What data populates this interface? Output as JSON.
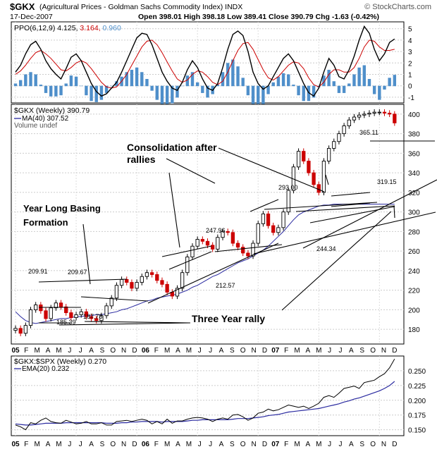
{
  "header": {
    "symbol": "$GKX",
    "name": "(Agricultural Prices - Goldman Sachs Commodity Index)",
    "exchange": "INDX",
    "date": "17-Dec-2007",
    "ohlc": "Open 398.01  High 398.18  Low 389.41  Close 390.79  Chg -1.63 (-0.42%)",
    "watermark": "© StockCharts.com"
  },
  "chart_data": [
    {
      "type": "line",
      "panel": "ppo",
      "legend": [
        "PPO(6,12,9)",
        "4.125,",
        "3.164,",
        "0.960"
      ],
      "ylim": [
        -1.5,
        5.6
      ],
      "yticks": [
        -1,
        0,
        1,
        2,
        3,
        4,
        5
      ],
      "x": [
        0,
        2,
        4,
        6,
        8,
        10,
        12,
        14,
        16,
        18,
        20,
        22,
        24,
        26,
        28,
        30,
        32,
        34,
        36,
        38,
        40,
        42,
        44,
        46,
        48,
        50,
        52,
        54,
        56,
        58,
        60,
        62,
        64,
        66,
        68,
        70,
        72,
        74,
        76,
        78,
        80,
        82,
        84,
        86,
        88,
        90,
        92,
        94,
        96,
        98,
        100,
        102,
        104,
        106,
        108,
        110,
        112,
        114,
        116,
        118,
        120,
        122,
        124,
        126,
        128,
        130,
        132,
        134,
        136,
        138,
        140,
        142,
        144,
        146,
        148,
        150
      ],
      "series": [
        {
          "name": "PPO",
          "color": "#000000",
          "values": [
            1.2,
            1.8,
            2.8,
            3.6,
            3.9,
            3.2,
            2.2,
            1.5,
            1.0,
            0.6,
            1.5,
            2.5,
            2.8,
            2.2,
            1.2,
            0.2,
            -0.5,
            -0.9,
            -0.7,
            -0.2,
            0.3,
            1.2,
            2.2,
            3.2,
            4.2,
            4.6,
            4.5,
            3.6,
            2.4,
            1.2,
            0.4,
            -0.2,
            -0.4,
            0.3,
            1.4,
            2.2,
            1.6,
            0.6,
            -0.2,
            -0.4,
            0.2,
            1.6,
            3.2,
            4.5,
            4.8,
            4.4,
            3.0,
            1.2,
            0.2,
            -0.3,
            0.0,
            0.8,
            1.6,
            2.4,
            2.8,
            2.2,
            1.2,
            0.2,
            -0.6,
            -0.9,
            -0.2,
            1.2,
            2.4,
            1.8,
            0.8,
            0.6,
            1.4,
            2.6,
            4.0,
            5.2,
            4.6,
            3.2,
            2.2,
            2.8,
            3.8,
            4.1
          ]
        },
        {
          "name": "Signal",
          "color": "#cc0000",
          "values": [
            1.0,
            1.3,
            1.8,
            2.4,
            2.9,
            3.1,
            2.8,
            2.4,
            1.9,
            1.4,
            1.3,
            1.6,
            2.0,
            2.2,
            2.0,
            1.5,
            0.9,
            0.3,
            -0.1,
            -0.2,
            -0.1,
            0.4,
            1.0,
            1.8,
            2.6,
            3.4,
            3.9,
            4.0,
            3.6,
            2.9,
            2.1,
            1.3,
            0.6,
            0.3,
            0.5,
            1.0,
            1.3,
            1.2,
            0.8,
            0.3,
            0.1,
            0.4,
            1.2,
            2.2,
            3.1,
            3.7,
            3.8,
            3.2,
            2.3,
            1.4,
            0.7,
            0.5,
            0.8,
            1.3,
            1.8,
            2.1,
            2.0,
            1.5,
            0.7,
            0.1,
            -0.1,
            0.3,
            1.0,
            1.4,
            1.4,
            1.2,
            1.2,
            1.6,
            2.4,
            3.4,
            4.0,
            3.9,
            3.4,
            3.1,
            3.1,
            3.2
          ]
        },
        {
          "name": "Histogram",
          "color": "#4f8fca",
          "values": [
            0.2,
            0.5,
            1.0,
            1.2,
            1.0,
            0.1,
            -0.6,
            -0.9,
            -0.9,
            -0.8,
            0.2,
            0.9,
            0.8,
            0.0,
            -0.8,
            -1.3,
            -1.4,
            -1.2,
            -0.6,
            0.0,
            0.4,
            0.8,
            1.2,
            1.4,
            1.6,
            1.2,
            0.6,
            -0.4,
            -1.2,
            -1.7,
            -1.7,
            -1.5,
            -1.0,
            0.0,
            0.9,
            1.2,
            0.3,
            -0.6,
            -1.0,
            -0.7,
            0.1,
            1.2,
            2.0,
            2.3,
            1.7,
            0.7,
            -0.8,
            -2.0,
            -2.1,
            -1.7,
            -0.7,
            0.3,
            0.8,
            1.1,
            1.0,
            0.1,
            -0.8,
            -1.3,
            -1.3,
            -1.0,
            -0.1,
            0.9,
            1.4,
            0.4,
            -0.6,
            -0.6,
            0.2,
            1.0,
            1.6,
            1.8,
            0.6,
            -0.7,
            -1.2,
            -0.3,
            0.7,
            0.96
          ]
        }
      ]
    },
    {
      "type": "candlestick",
      "panel": "price",
      "legend": [
        "$GKX (Weekly) 390.79",
        "MA(40) 307.52",
        "Volume undef"
      ],
      "ylim": [
        165,
        410
      ],
      "yticks": [
        180,
        200,
        220,
        240,
        260,
        280,
        300,
        320,
        340,
        360,
        380,
        400
      ],
      "x": [
        0,
        2,
        4,
        6,
        8,
        10,
        12,
        14,
        16,
        18,
        20,
        22,
        24,
        26,
        28,
        30,
        32,
        34,
        36,
        38,
        40,
        42,
        44,
        46,
        48,
        50,
        52,
        54,
        56,
        58,
        60,
        62,
        64,
        66,
        68,
        70,
        72,
        74,
        76,
        78,
        80,
        82,
        84,
        86,
        88,
        90,
        92,
        94,
        96,
        98,
        100,
        102,
        104,
        106,
        108,
        110,
        112,
        114,
        116,
        118,
        120,
        122,
        124,
        126,
        128,
        130,
        132,
        134,
        136,
        138,
        140,
        142,
        144,
        146,
        148,
        150
      ],
      "close": [
        181,
        176,
        184,
        200,
        205,
        199,
        191,
        202,
        207,
        203,
        197,
        192,
        195,
        198,
        193,
        191,
        189,
        194,
        204,
        212,
        225,
        231,
        228,
        222,
        228,
        234,
        238,
        236,
        230,
        226,
        218,
        214,
        222,
        238,
        254,
        265,
        272,
        270,
        266,
        262,
        274,
        280,
        279,
        268,
        264,
        258,
        255,
        268,
        288,
        298,
        286,
        279,
        284,
        300,
        322,
        346,
        362,
        352,
        340,
        328,
        320,
        352,
        365,
        372,
        380,
        388,
        394,
        397,
        399,
        400,
        401,
        402,
        402,
        401,
        400,
        391
      ],
      "ma": {
        "name": "MA(40)",
        "color": "#2a2aa0",
        "values": [
          198,
          193,
          189,
          187,
          186,
          187,
          188,
          189,
          190,
          191,
          191,
          192,
          193,
          193,
          194,
          194,
          195,
          195,
          196,
          197,
          198,
          200,
          201,
          203,
          205,
          207,
          209,
          210,
          212,
          213,
          214,
          215,
          216,
          218,
          220,
          223,
          225,
          228,
          231,
          234,
          236,
          239,
          242,
          245,
          248,
          250,
          252,
          255,
          258,
          261,
          265,
          270,
          275,
          280,
          286,
          292,
          297,
          300,
          302,
          304,
          306,
          307,
          307,
          308,
          308,
          308,
          308,
          308,
          308,
          308,
          308,
          308,
          308,
          308,
          308,
          308
        ]
      },
      "annotations": [
        {
          "text": "Consolidation after",
          "kind": "title"
        },
        {
          "text": "rallies",
          "kind": "title"
        },
        {
          "text": "Year Long Basing",
          "kind": "title"
        },
        {
          "text": "Formation",
          "kind": "title"
        },
        {
          "text": "Three Year rally",
          "kind": "title"
        },
        {
          "text": "209.91",
          "kind": "label"
        },
        {
          "text": "209.67",
          "kind": "label"
        },
        {
          "text": "185.39",
          "kind": "label"
        },
        {
          "text": "187.78",
          "kind": "label"
        },
        {
          "text": "247.96",
          "kind": "label"
        },
        {
          "text": "212.57",
          "kind": "label"
        },
        {
          "text": "293.00",
          "kind": "label"
        },
        {
          "text": "244.34",
          "kind": "label"
        },
        {
          "text": "365.11",
          "kind": "label"
        },
        {
          "text": "319.15",
          "kind": "label"
        }
      ],
      "xlabels": [
        "05",
        "F",
        "M",
        "A",
        "M",
        "J",
        "J",
        "A",
        "S",
        "O",
        "N",
        "D",
        "06",
        "F",
        "M",
        "A",
        "M",
        "J",
        "J",
        "A",
        "S",
        "O",
        "N",
        "D",
        "07",
        "F",
        "M",
        "A",
        "M",
        "J",
        "J",
        "A",
        "S",
        "O",
        "N",
        "D"
      ]
    },
    {
      "type": "line",
      "panel": "ratio",
      "legend": [
        "$GKX:$SPX (Weekly) 0.270",
        "EMA(20) 0.232"
      ],
      "ylim": [
        0.14,
        0.275
      ],
      "yticks": [
        0.15,
        0.175,
        0.2,
        0.225,
        0.25
      ],
      "x": [
        0,
        2,
        4,
        6,
        8,
        10,
        12,
        14,
        16,
        18,
        20,
        22,
        24,
        26,
        28,
        30,
        32,
        34,
        36,
        38,
        40,
        42,
        44,
        46,
        48,
        50,
        52,
        54,
        56,
        58,
        60,
        62,
        64,
        66,
        68,
        70,
        72,
        74,
        76,
        78,
        80,
        82,
        84,
        86,
        88,
        90,
        92,
        94,
        96,
        98,
        100,
        102,
        104,
        106,
        108,
        110,
        112,
        114,
        116,
        118,
        120,
        122,
        124,
        126,
        128,
        130,
        132,
        134,
        136,
        138,
        140,
        142,
        144,
        146,
        148,
        150
      ],
      "series": [
        {
          "name": "$GKX:$SPX",
          "color": "#000000",
          "values": [
            0.158,
            0.155,
            0.15,
            0.162,
            0.16,
            0.166,
            0.17,
            0.164,
            0.162,
            0.161,
            0.166,
            0.163,
            0.16,
            0.161,
            0.164,
            0.16,
            0.16,
            0.162,
            0.158,
            0.158,
            0.164,
            0.165,
            0.166,
            0.164,
            0.166,
            0.168,
            0.166,
            0.16,
            0.164,
            0.16,
            0.168,
            0.161,
            0.165,
            0.165,
            0.168,
            0.17,
            0.171,
            0.17,
            0.168,
            0.164,
            0.168,
            0.17,
            0.168,
            0.175,
            0.176,
            0.172,
            0.166,
            0.17,
            0.178,
            0.18,
            0.185,
            0.182,
            0.184,
            0.188,
            0.192,
            0.19,
            0.188,
            0.19,
            0.186,
            0.19,
            0.195,
            0.205,
            0.208,
            0.205,
            0.212,
            0.22,
            0.222,
            0.224,
            0.22,
            0.23,
            0.232,
            0.234,
            0.24,
            0.245,
            0.255,
            0.27
          ]
        },
        {
          "name": "EMA(20)",
          "color": "#2a2aa0",
          "values": [
            0.16,
            0.159,
            0.158,
            0.158,
            0.159,
            0.16,
            0.161,
            0.161,
            0.161,
            0.161,
            0.162,
            0.162,
            0.162,
            0.162,
            0.162,
            0.162,
            0.162,
            0.162,
            0.161,
            0.161,
            0.161,
            0.162,
            0.162,
            0.163,
            0.163,
            0.164,
            0.164,
            0.164,
            0.164,
            0.163,
            0.164,
            0.164,
            0.164,
            0.164,
            0.165,
            0.166,
            0.166,
            0.167,
            0.167,
            0.167,
            0.167,
            0.167,
            0.167,
            0.168,
            0.169,
            0.169,
            0.169,
            0.17,
            0.171,
            0.172,
            0.174,
            0.175,
            0.176,
            0.178,
            0.18,
            0.181,
            0.182,
            0.183,
            0.184,
            0.185,
            0.186,
            0.188,
            0.19,
            0.192,
            0.194,
            0.197,
            0.199,
            0.202,
            0.204,
            0.207,
            0.21,
            0.213,
            0.216,
            0.22,
            0.225,
            0.232
          ]
        }
      ]
    }
  ]
}
